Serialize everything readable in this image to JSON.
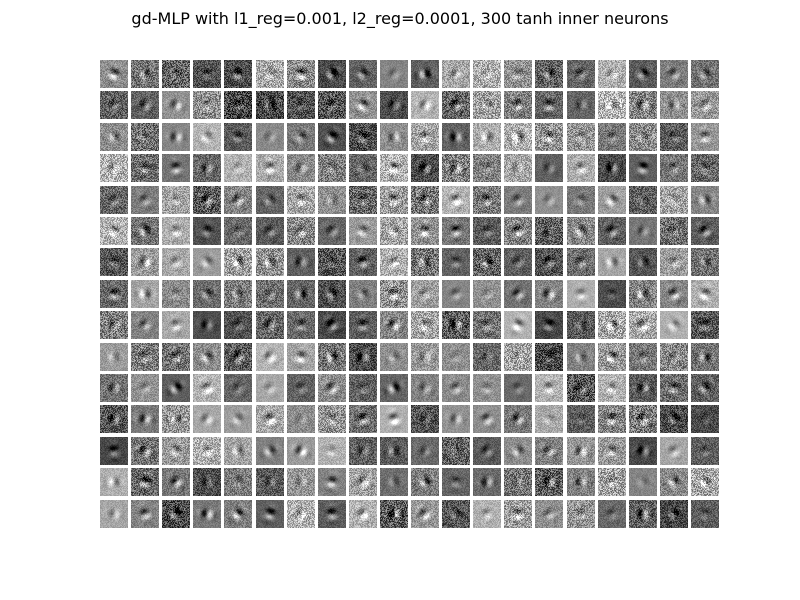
{
  "title": "gd-MLP with l1_reg=0.001, l2_reg=0.0001, 300 tanh inner neurons",
  "figure": {
    "type": "weight-filter-grid",
    "rows": 15,
    "columns": 20,
    "tile_count": 300,
    "colormap": "gray"
  }
}
